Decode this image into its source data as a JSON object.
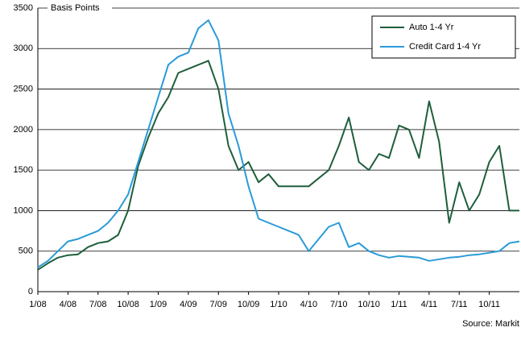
{
  "chart_data": {
    "type": "line",
    "ylabel": "Basis Points",
    "source": "Source: Markit",
    "categories": [
      "1/08",
      null,
      null,
      "4/08",
      null,
      null,
      "7/08",
      null,
      null,
      "10/08",
      null,
      null,
      "1/09",
      null,
      null,
      "4/09",
      null,
      null,
      "7/09",
      null,
      null,
      "10/09",
      null,
      null,
      "1/10",
      null,
      null,
      "4/10",
      null,
      null,
      "7/10",
      null,
      null,
      "10/10",
      null,
      null,
      "1/11",
      null,
      null,
      "4/11",
      null,
      null,
      "7/11",
      null,
      null,
      "10/11",
      null,
      null,
      null
    ],
    "series": [
      {
        "name": "Auto 1-4 Yr",
        "color": "#1e5e3b",
        "values": [
          270,
          350,
          420,
          450,
          460,
          550,
          600,
          620,
          700,
          1000,
          1550,
          1900,
          2200,
          2400,
          2700,
          2750,
          2800,
          2850,
          2500,
          1800,
          1500,
          1600,
          1350,
          1450,
          1300,
          1300,
          1300,
          1300,
          1400,
          1500,
          1800,
          2150,
          1600,
          1500,
          1700,
          1650,
          2050,
          2000,
          1650,
          2350,
          1850,
          850,
          1350,
          1000,
          1200,
          1600,
          1800,
          1000,
          1000
        ]
      },
      {
        "name": "Credit Card 1-4 Yr",
        "color": "#2a9bd8",
        "values": [
          300,
          380,
          500,
          620,
          650,
          700,
          750,
          850,
          1000,
          1200,
          1600,
          2000,
          2400,
          2800,
          2900,
          2950,
          3250,
          3350,
          3100,
          2200,
          1800,
          1300,
          900,
          850,
          800,
          750,
          700,
          500,
          650,
          800,
          850,
          550,
          600,
          500,
          450,
          420,
          440,
          430,
          420,
          380,
          400,
          420,
          430,
          450,
          460,
          480,
          500,
          600,
          620
        ]
      }
    ],
    "ylim": [
      0,
      3500
    ],
    "yticks": [
      0,
      500,
      1000,
      1500,
      2000,
      2500,
      3000,
      3500
    ],
    "grid": true,
    "legend": "upper right"
  }
}
